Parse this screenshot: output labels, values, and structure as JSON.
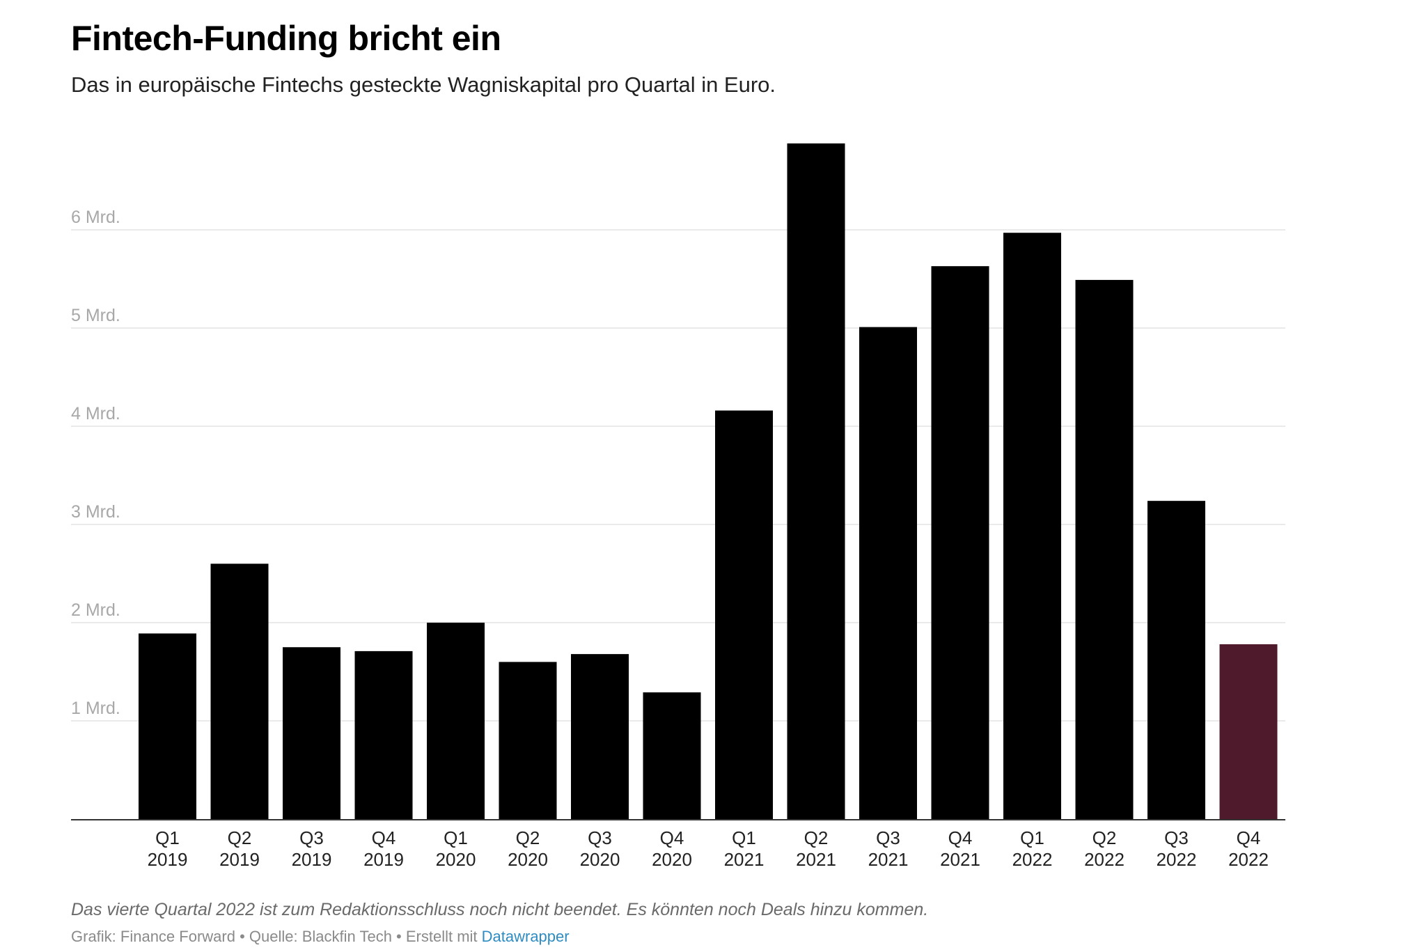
{
  "header": {
    "title": "Fintech-Funding bricht ein",
    "subtitle": "Das in europäische Fintechs gesteckte Wagniskapital pro Quartal in Euro."
  },
  "footer": {
    "note": "Das vierte Quartal 2022 ist zum Redaktionsschluss noch nicht beendet. Es könnten noch Deals hinzu kommen.",
    "credit_prefix": "Grafik: Finance Forward • Quelle: Blackfin Tech • Erstellt mit ",
    "credit_link": "Datawrapper"
  },
  "colors": {
    "bar": "#000000",
    "bar_highlight": "#4e1a2c",
    "grid": "#e3e3e3",
    "baseline": "#333333",
    "link": "#2e8cc2"
  },
  "chart_data": {
    "type": "bar",
    "title": "Fintech-Funding bricht ein",
    "subtitle": "Das in europäische Fintechs gesteckte Wagniskapital pro Quartal in Euro.",
    "unit": "Mrd. Euro",
    "categories": [
      [
        "Q1",
        "2019"
      ],
      [
        "Q2",
        "2019"
      ],
      [
        "Q3",
        "2019"
      ],
      [
        "Q4",
        "2019"
      ],
      [
        "Q1",
        "2020"
      ],
      [
        "Q2",
        "2020"
      ],
      [
        "Q3",
        "2020"
      ],
      [
        "Q4",
        "2020"
      ],
      [
        "Q1",
        "2021"
      ],
      [
        "Q2",
        "2021"
      ],
      [
        "Q3",
        "2021"
      ],
      [
        "Q4",
        "2021"
      ],
      [
        "Q1",
        "2022"
      ],
      [
        "Q2",
        "2022"
      ],
      [
        "Q3",
        "2022"
      ],
      [
        "Q4",
        "2022"
      ]
    ],
    "values": [
      1.89,
      2.6,
      1.75,
      1.71,
      2.0,
      1.6,
      1.68,
      1.29,
      4.16,
      6.88,
      5.01,
      5.63,
      5.97,
      5.49,
      3.24,
      1.78
    ],
    "highlight_index": 15,
    "y_ticks": [
      {
        "value": 1,
        "label": "1 Mrd."
      },
      {
        "value": 2,
        "label": "2 Mrd."
      },
      {
        "value": 3,
        "label": "3 Mrd."
      },
      {
        "value": 4,
        "label": "4 Mrd."
      },
      {
        "value": 5,
        "label": "5 Mrd."
      },
      {
        "value": 6,
        "label": "6 Mrd."
      }
    ],
    "ylim": [
      0,
      7
    ],
    "grid": true,
    "legend": "none"
  }
}
